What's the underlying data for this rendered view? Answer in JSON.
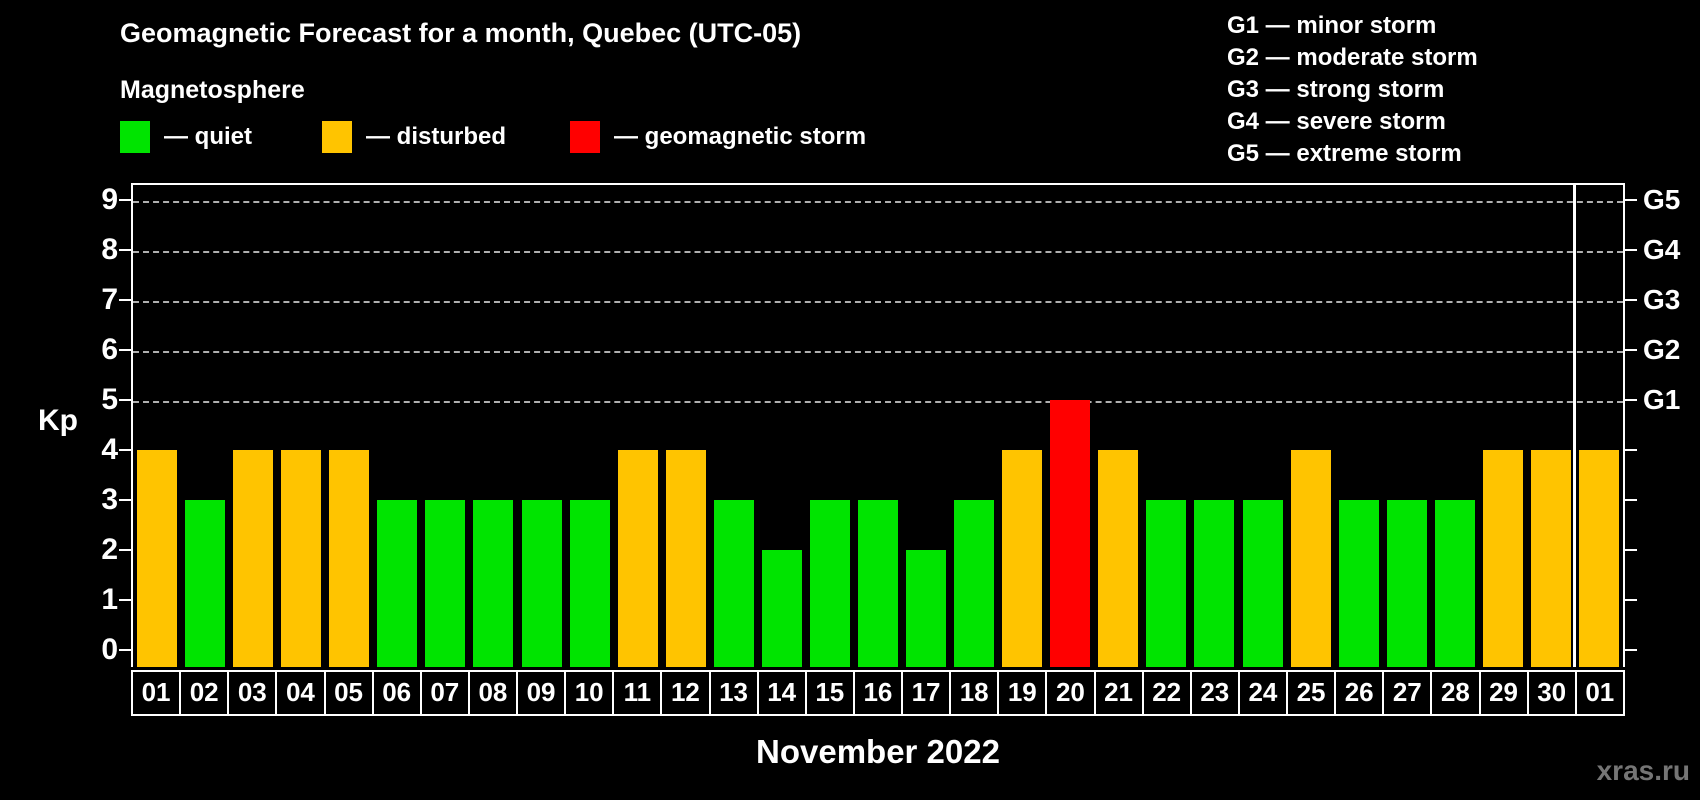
{
  "header": {
    "title": "Geomagnetic Forecast for a month, Quebec (UTC-05)",
    "subtitle": "Magnetosphere"
  },
  "legend": {
    "items": [
      {
        "name": "quiet",
        "label": "— quiet",
        "color": "#00e400",
        "x": 0
      },
      {
        "name": "disturbed",
        "label": "— disturbed",
        "color": "#ffc400",
        "x": 202
      },
      {
        "name": "storm",
        "label": "— geomagnetic storm",
        "color": "#ff0000",
        "x": 450
      }
    ]
  },
  "g_legend": {
    "items": [
      {
        "label": "G1 — minor storm"
      },
      {
        "label": "G2 — moderate storm"
      },
      {
        "label": "G3 — strong storm"
      },
      {
        "label": "G4 — severe storm"
      },
      {
        "label": "G5 — extreme storm"
      }
    ]
  },
  "chart_data": {
    "type": "bar",
    "title": "Geomagnetic Forecast for a month, Quebec (UTC-05)",
    "subtitle": "Magnetosphere",
    "xlabel": "November 2022",
    "ylabel": "Kp",
    "ylim": [
      0,
      9
    ],
    "grid": "dashed horizontal at Kp 5-9 (G1-G5)",
    "y_ticks": [
      0,
      1,
      2,
      3,
      4,
      5,
      6,
      7,
      8,
      9
    ],
    "categories": [
      "01",
      "02",
      "03",
      "04",
      "05",
      "06",
      "07",
      "08",
      "09",
      "10",
      "11",
      "12",
      "13",
      "14",
      "15",
      "16",
      "17",
      "18",
      "19",
      "20",
      "21",
      "22",
      "23",
      "24",
      "25",
      "26",
      "27",
      "28",
      "29",
      "30",
      "01"
    ],
    "values": [
      4,
      3,
      4,
      4,
      4,
      3,
      3,
      3,
      3,
      3,
      4,
      4,
      3,
      2,
      3,
      3,
      2,
      3,
      4,
      5,
      4,
      3,
      3,
      3,
      4,
      3,
      3,
      3,
      4,
      4,
      4
    ],
    "statuses": [
      "disturbed",
      "quiet",
      "disturbed",
      "disturbed",
      "disturbed",
      "quiet",
      "quiet",
      "quiet",
      "quiet",
      "quiet",
      "disturbed",
      "disturbed",
      "quiet",
      "quiet",
      "quiet",
      "quiet",
      "quiet",
      "quiet",
      "disturbed",
      "storm",
      "disturbed",
      "quiet",
      "quiet",
      "quiet",
      "disturbed",
      "quiet",
      "quiet",
      "quiet",
      "disturbed",
      "disturbed",
      "disturbed"
    ],
    "colors": {
      "quiet": "#00e400",
      "disturbed": "#ffc400",
      "storm": "#ff0000"
    },
    "g_levels": [
      {
        "label": "G1",
        "kp": 5
      },
      {
        "label": "G2",
        "kp": 6
      },
      {
        "label": "G3",
        "kp": 7
      },
      {
        "label": "G4",
        "kp": 8
      },
      {
        "label": "G5",
        "kp": 9
      }
    ],
    "month_separator_after_index": 29
  },
  "footer": {
    "watermark": "xras.ru"
  }
}
